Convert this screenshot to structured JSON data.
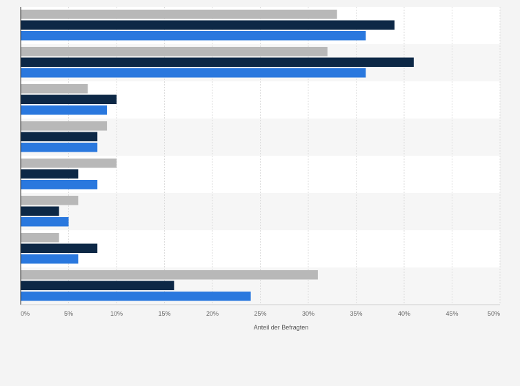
{
  "chart_data": {
    "type": "bar",
    "orientation": "horizontal",
    "title": "",
    "xlabel": "Anteil der Befragten",
    "ylabel": "",
    "xlim": [
      0,
      50
    ],
    "xticks": [
      "0%",
      "5%",
      "10%",
      "15%",
      "20%",
      "25%",
      "30%",
      "35%",
      "40%",
      "45%",
      "50%"
    ],
    "grid": true,
    "legend": "none",
    "categories": [
      "",
      "",
      "",
      "",
      "",
      "",
      "",
      ""
    ],
    "series": [
      {
        "color": "#b8b8b8",
        "values": [
          33,
          32,
          7,
          9,
          10,
          6,
          4,
          31
        ]
      },
      {
        "color": "#0d2846",
        "values": [
          39,
          41,
          10,
          8,
          6,
          4,
          8,
          16
        ]
      },
      {
        "color": "#2a78de",
        "values": [
          36,
          36,
          9,
          8,
          8,
          5,
          6,
          24
        ]
      }
    ]
  }
}
